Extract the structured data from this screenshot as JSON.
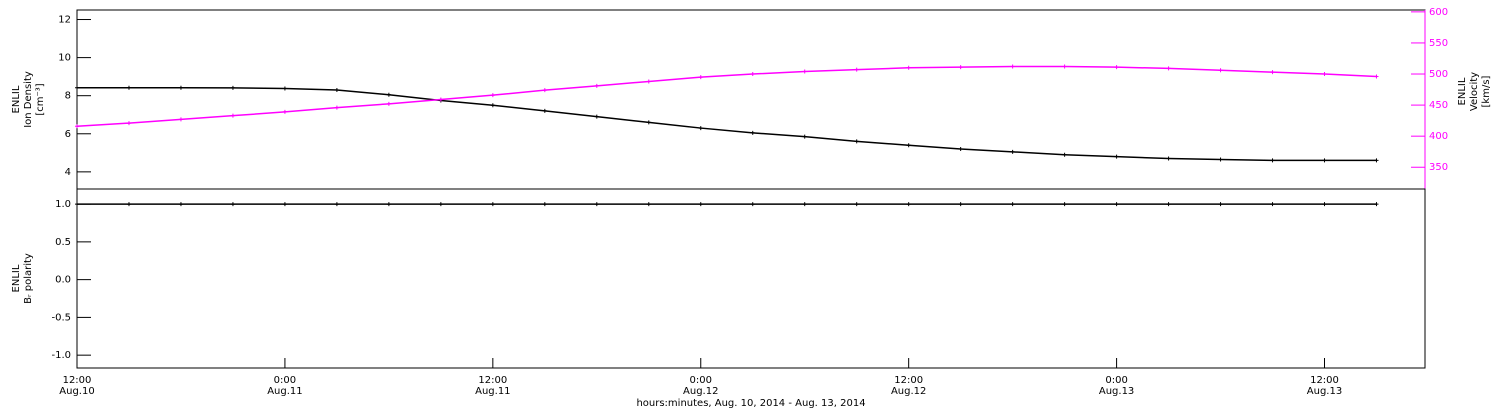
{
  "chart_data": [
    {
      "type": "line",
      "y_label": [
        "ENLIL",
        "Ion Density",
        "[cm⁻³]"
      ],
      "y2_label": [
        "ENLIL",
        "Velocity",
        "[km/s]"
      ],
      "x": [
        0,
        3,
        6,
        9,
        12,
        15,
        18,
        21,
        24,
        27,
        30,
        33,
        36,
        39,
        42,
        45,
        48,
        51,
        54,
        57,
        60,
        63,
        66,
        69,
        72,
        75
      ],
      "xlim": [
        0,
        77.8
      ],
      "ylim": [
        3.1,
        12.5
      ],
      "yticks": [
        4,
        6,
        8,
        10,
        12
      ],
      "y2lim": [
        315,
        603
      ],
      "y2ticks": [
        350,
        400,
        450,
        500,
        550,
        600
      ],
      "series": [
        {
          "name": "Ion Density",
          "color": "#000000",
          "values": [
            8.42,
            8.42,
            8.42,
            8.41,
            8.38,
            8.3,
            8.05,
            7.75,
            7.5,
            7.2,
            6.9,
            6.6,
            6.3,
            6.05,
            5.85,
            5.6,
            5.4,
            5.2,
            5.05,
            4.9,
            4.8,
            4.7,
            4.65,
            4.6,
            4.6,
            4.6
          ]
        },
        {
          "name": "Velocity",
          "color": "#ff00ff",
          "axis": "y2",
          "values": [
            416,
            421,
            427,
            433,
            439,
            446,
            452,
            459,
            466,
            474,
            481,
            488,
            495,
            500,
            504,
            507,
            510,
            511,
            512,
            512,
            511,
            509,
            506,
            503,
            500,
            496
          ]
        }
      ]
    },
    {
      "type": "line",
      "y_label": [
        "ENLIL",
        "Bᵣ polarity"
      ],
      "x_label": "hours:minutes, Aug. 10, 2014 - Aug. 13, 2014",
      "x": [
        0,
        3,
        6,
        9,
        12,
        15,
        18,
        21,
        24,
        27,
        30,
        33,
        36,
        39,
        42,
        45,
        48,
        51,
        54,
        57,
        60,
        63,
        66,
        69,
        72,
        75
      ],
      "xlim": [
        0,
        77.8
      ],
      "xticks": [
        {
          "value": 0,
          "label": "12:00",
          "date": "Aug.10"
        },
        {
          "value": 12,
          "label": "0:00",
          "date": "Aug.11"
        },
        {
          "value": 24,
          "label": "12:00",
          "date": "Aug.11"
        },
        {
          "value": 36,
          "label": "0:00",
          "date": "Aug.12"
        },
        {
          "value": 48,
          "label": "12:00",
          "date": "Aug.12"
        },
        {
          "value": 60,
          "label": "0:00",
          "date": "Aug.13"
        },
        {
          "value": 72,
          "label": "12:00",
          "date": "Aug.13"
        }
      ],
      "ylim": [
        -1.17,
        1.2
      ],
      "yticks": [
        {
          "value": 1,
          "label": "1.0"
        },
        0.5,
        {
          "value": 0,
          "label": "0.0"
        },
        -0.5,
        {
          "value": -1,
          "label": "-1.0"
        }
      ],
      "series": [
        {
          "name": "Bᵣ polarity",
          "color": "#000000",
          "values": [
            1,
            1,
            1,
            1,
            1,
            1,
            1,
            1,
            1,
            1,
            1,
            1,
            1,
            1,
            1,
            1,
            1,
            1,
            1,
            1,
            1,
            1,
            1,
            1,
            1,
            1
          ]
        }
      ]
    }
  ]
}
